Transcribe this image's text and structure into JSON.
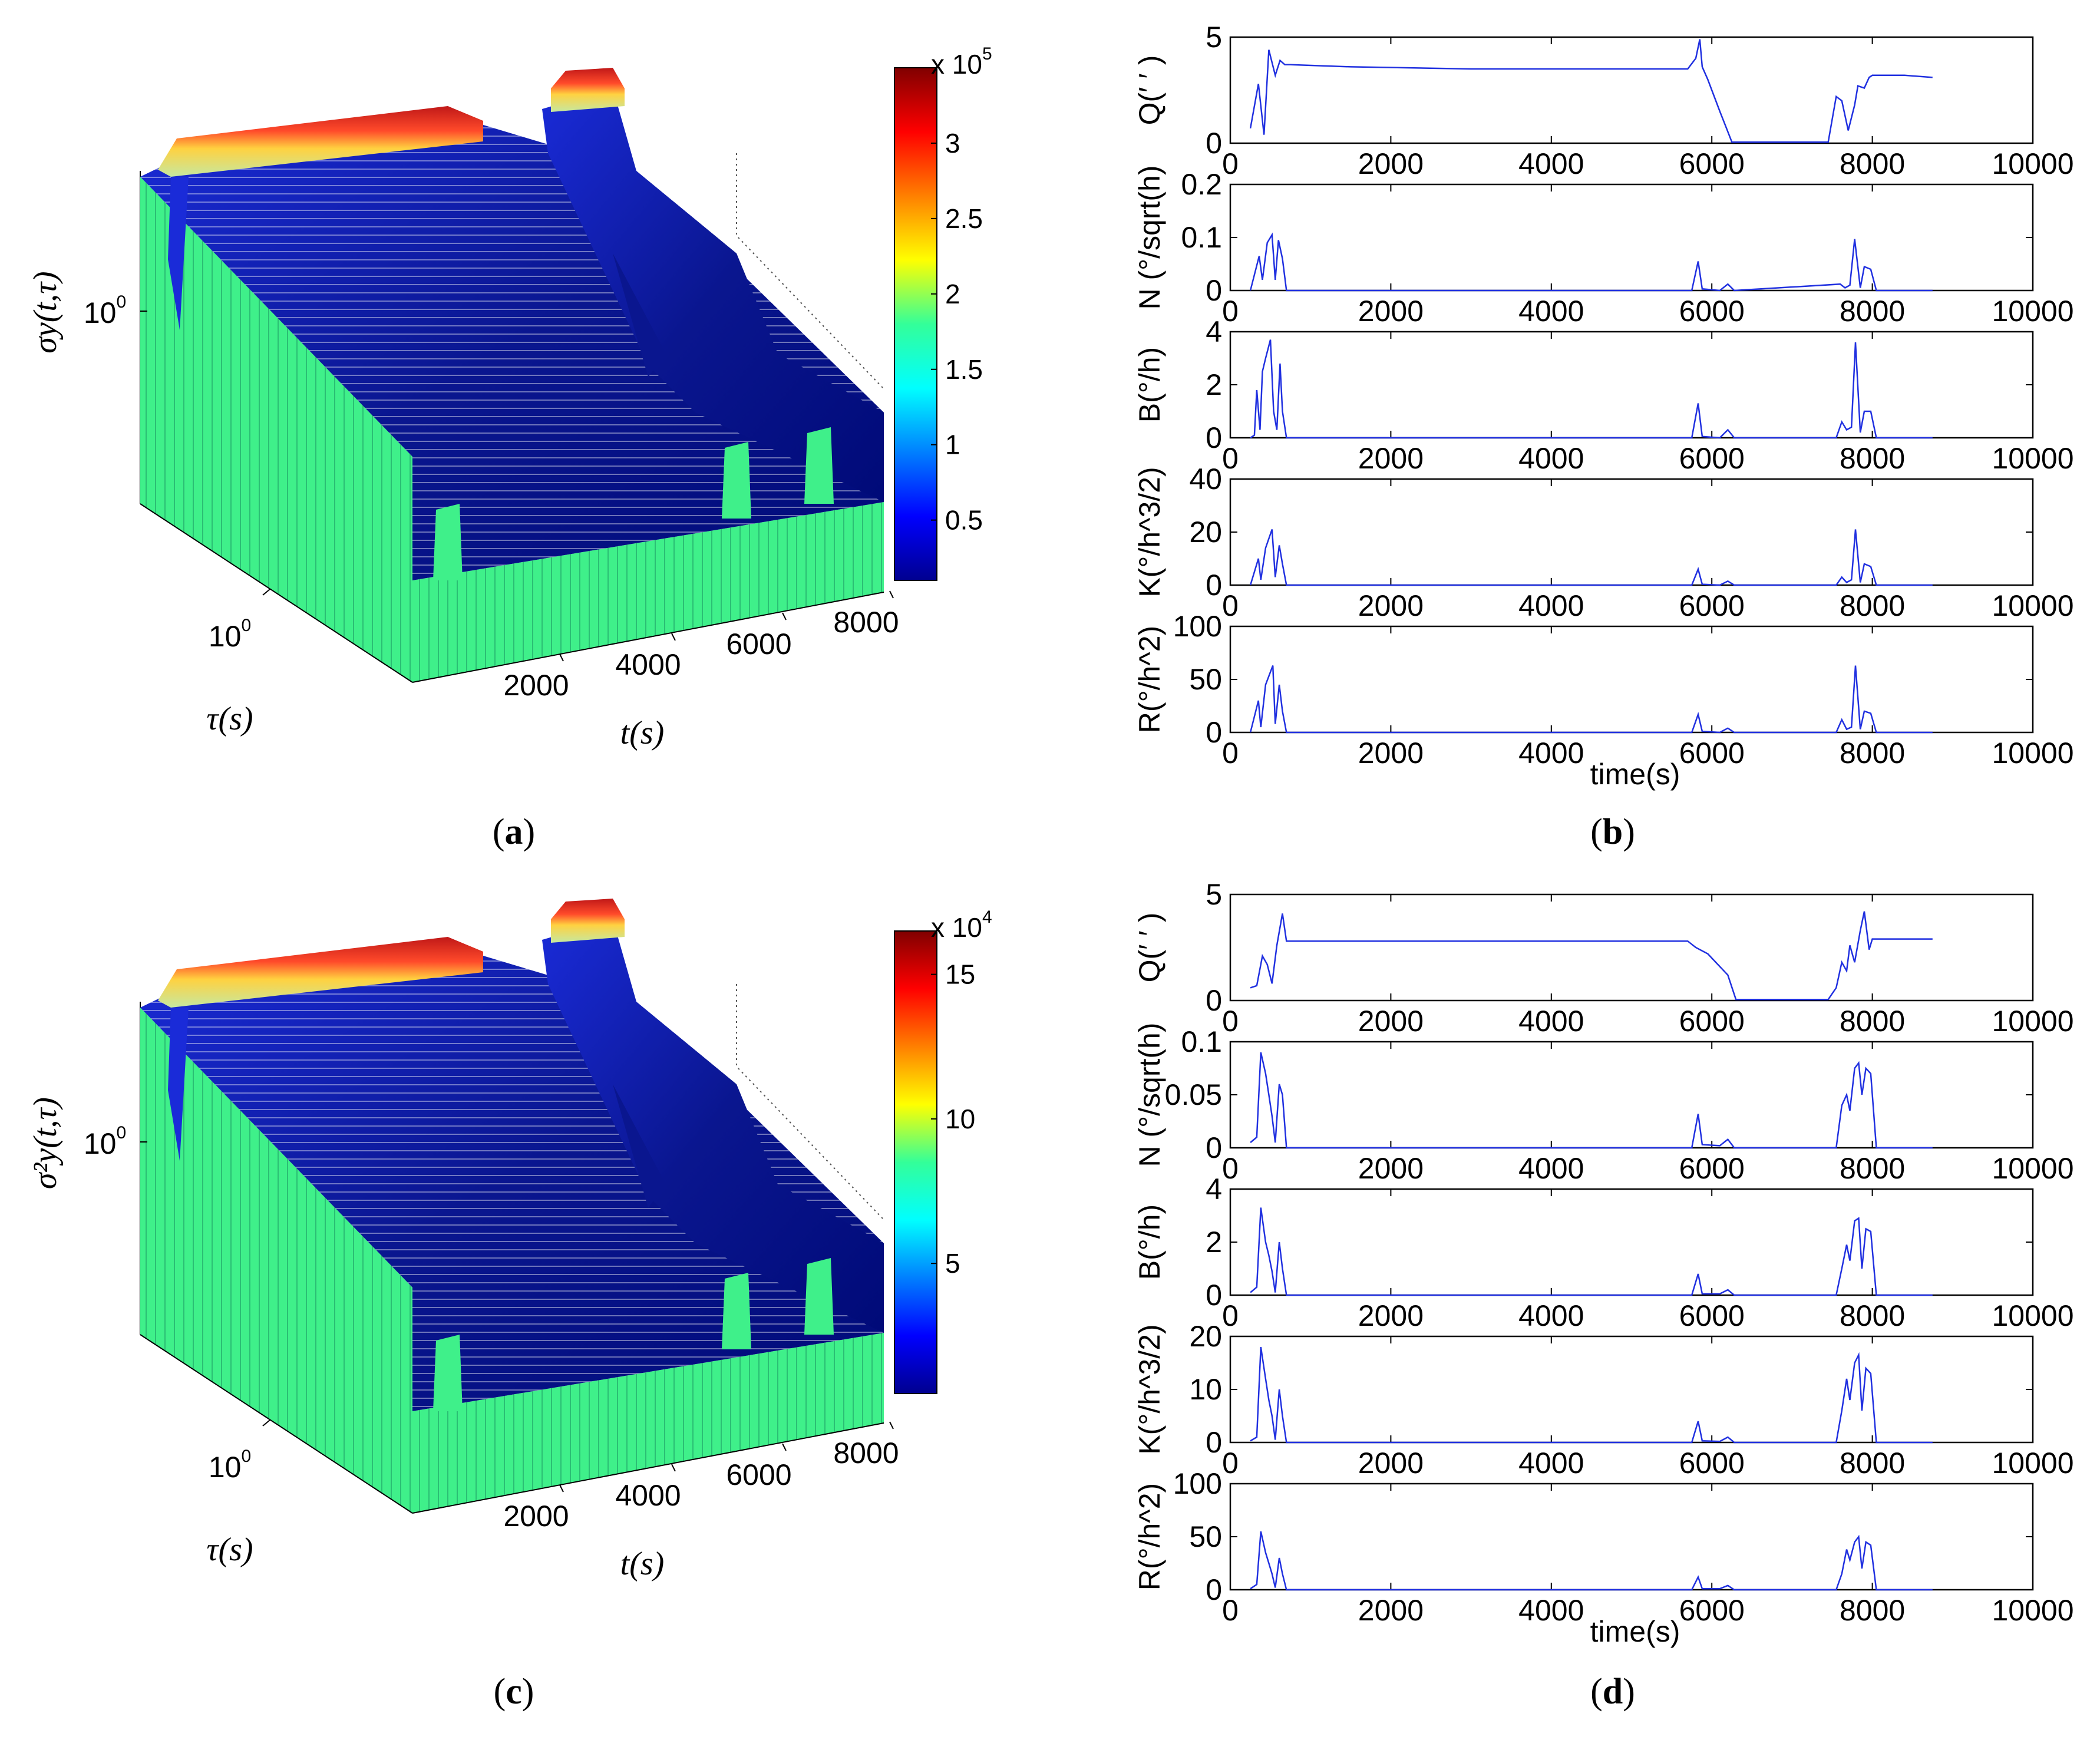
{
  "colors": {
    "series_line": "#2030e0",
    "surface_dark": "#000a8c",
    "surface_green": "#3ff08a",
    "axis": "#000000"
  },
  "captions": {
    "a": "a",
    "b": "b",
    "c": "c",
    "d": "d"
  },
  "chart_data": [
    {
      "panel": "a",
      "type": "surface3d",
      "zlabel": "σy(t,τ)",
      "ylabel": "τ(s)",
      "xlabel": "t(s)",
      "x_ticks": [
        "2000",
        "4000",
        "6000",
        "8000"
      ],
      "y_ticks": [
        "10"
      ],
      "y_tick_exponents": [
        "0"
      ],
      "z_ticks": [
        "10"
      ],
      "z_tick_exponents": [
        "0"
      ],
      "colorbar": {
        "ticks": [
          "0.5",
          "1",
          "1.5",
          "2",
          "2.5",
          "3"
        ],
        "tick_values": [
          0.5,
          1,
          1.5,
          2,
          2.5,
          3
        ],
        "range": [
          0.1,
          3.5
        ],
        "multiplier": "x 10",
        "multiplier_exponent": "5"
      }
    },
    {
      "panel": "b",
      "type": "line",
      "subplots": [
        {
          "ylabel": "Q(′  ′ )",
          "ylim": [
            0,
            5
          ],
          "yticks": [
            "0",
            "5"
          ],
          "x": [
            250,
            350,
            420,
            480,
            560,
            620,
            680,
            750,
            1500,
            3000,
            4500,
            5700,
            5800,
            5850,
            5880,
            5950,
            6100,
            6250,
            6400,
            7450,
            7550,
            7620,
            7700,
            7780,
            7820,
            7900,
            7960,
            8000,
            8400,
            8750
          ],
          "y": [
            0.7,
            2.8,
            0.4,
            4.4,
            3.2,
            3.9,
            3.7,
            3.7,
            3.6,
            3.5,
            3.5,
            3.5,
            4.0,
            4.9,
            3.6,
            3.0,
            1.5,
            0.05,
            0.05,
            0.05,
            2.2,
            2.0,
            0.6,
            1.8,
            2.7,
            2.6,
            3.1,
            3.2,
            3.2,
            3.1
          ]
        },
        {
          "ylabel": "N (°/sqrt(h)",
          "ylim": [
            0,
            0.2
          ],
          "yticks": [
            "0",
            "0.1",
            "0.2"
          ],
          "x": [
            250,
            360,
            400,
            460,
            520,
            560,
            600,
            650,
            700,
            5750,
            5830,
            5880,
            6100,
            6200,
            6280,
            7600,
            7660,
            7720,
            7780,
            7850,
            7900,
            7980,
            8050,
            8750
          ],
          "y": [
            0,
            0.065,
            0.02,
            0.09,
            0.105,
            0.02,
            0.095,
            0.06,
            0,
            0,
            0.055,
            0.003,
            0,
            0.012,
            0,
            0.012,
            0.005,
            0.01,
            0.097,
            0.005,
            0.045,
            0.04,
            0,
            0
          ]
        },
        {
          "ylabel": "B(°/h)",
          "ylim": [
            0,
            4
          ],
          "yticks": [
            "0",
            "2",
            "4"
          ],
          "x": [
            250,
            300,
            330,
            370,
            400,
            440,
            500,
            540,
            580,
            620,
            650,
            700,
            5750,
            5830,
            5880,
            6100,
            6200,
            6280,
            7550,
            7620,
            7680,
            7740,
            7790,
            7850,
            7900,
            7980,
            8050,
            8750
          ],
          "y": [
            0,
            0.1,
            1.8,
            0.3,
            2.5,
            3.0,
            3.7,
            1.0,
            0.3,
            2.8,
            1.0,
            0,
            0,
            1.3,
            0.05,
            0,
            0.3,
            0,
            0,
            0.6,
            0.3,
            0.4,
            3.6,
            0.2,
            1.0,
            1.0,
            0,
            0
          ]
        },
        {
          "ylabel": "K(°/h^3/2)",
          "ylim": [
            0,
            40
          ],
          "yticks": [
            "0",
            "20",
            "40"
          ],
          "x": [
            250,
            350,
            380,
            440,
            520,
            560,
            610,
            650,
            700,
            5750,
            5830,
            5880,
            6100,
            6200,
            6280,
            7550,
            7620,
            7680,
            7740,
            7790,
            7850,
            7900,
            7980,
            8050,
            8750
          ],
          "y": [
            0,
            10,
            2,
            14,
            21,
            3,
            15,
            8,
            0,
            0,
            6,
            0.3,
            0,
            1.5,
            0,
            0,
            3,
            1,
            2,
            21,
            1,
            8,
            7,
            0,
            0
          ]
        },
        {
          "ylabel": "R(°/h^2)",
          "ylim": [
            0,
            100
          ],
          "yticks": [
            "0",
            "50",
            "100"
          ],
          "x": [
            250,
            350,
            380,
            440,
            530,
            560,
            610,
            650,
            700,
            5750,
            5830,
            5880,
            6100,
            6200,
            6280,
            7550,
            7620,
            7680,
            7740,
            7790,
            7850,
            7900,
            7980,
            8050,
            8750
          ],
          "y": [
            0,
            30,
            5,
            45,
            63,
            8,
            45,
            20,
            0,
            0,
            17,
            1,
            0,
            4,
            0,
            0,
            12,
            3,
            5,
            63,
            3,
            20,
            18,
            0,
            0
          ]
        }
      ],
      "xlim": [
        0,
        10000
      ],
      "xticks": [
        "0",
        "2000",
        "4000",
        "6000",
        "8000",
        "10000"
      ],
      "xlabel": "time(s)"
    },
    {
      "panel": "c",
      "type": "surface3d",
      "zlabel": "σ²y(t,τ)",
      "ylabel": "τ(s)",
      "xlabel": "t(s)",
      "x_ticks": [
        "2000",
        "4000",
        "6000",
        "8000"
      ],
      "y_ticks": [
        "10"
      ],
      "y_tick_exponents": [
        "0"
      ],
      "z_ticks": [
        "10"
      ],
      "z_tick_exponents": [
        "0"
      ],
      "colorbar": {
        "ticks": [
          "5",
          "10",
          "15"
        ],
        "tick_values": [
          5,
          10,
          15
        ],
        "range": [
          0.5,
          16.5
        ],
        "multiplier": "x 10",
        "multiplier_exponent": "4"
      }
    },
    {
      "panel": "d",
      "type": "line",
      "subplots": [
        {
          "ylabel": "Q(′  ′ )",
          "ylim": [
            0,
            5
          ],
          "yticks": [
            "0",
            "5"
          ],
          "x": [
            250,
            330,
            400,
            460,
            520,
            580,
            650,
            700,
            750,
            1500,
            3000,
            4500,
            5700,
            5800,
            5950,
            6100,
            6200,
            6300,
            6400,
            7450,
            7550,
            7620,
            7680,
            7720,
            7780,
            7850,
            7900,
            7960,
            8000,
            8400,
            8750
          ],
          "y": [
            0.6,
            0.7,
            2.1,
            1.7,
            0.8,
            2.6,
            4.1,
            2.8,
            2.8,
            2.8,
            2.8,
            2.8,
            2.8,
            2.5,
            2.2,
            1.6,
            1.2,
            0.05,
            0.05,
            0.05,
            0.6,
            1.8,
            1.4,
            2.6,
            1.8,
            3.3,
            4.2,
            2.4,
            2.9,
            2.9,
            2.9
          ]
        },
        {
          "ylabel": "N (°/sqrt(h)",
          "ylim": [
            0,
            0.1
          ],
          "yticks": [
            "0",
            "0.05",
            "0.1"
          ],
          "x": [
            250,
            330,
            380,
            440,
            480,
            520,
            560,
            610,
            650,
            700,
            5750,
            5830,
            5880,
            6100,
            6200,
            6280,
            7550,
            7620,
            7680,
            7720,
            7780,
            7830,
            7870,
            7920,
            7980,
            8050,
            8750
          ],
          "y": [
            0.005,
            0.01,
            0.09,
            0.07,
            0.05,
            0.03,
            0.005,
            0.06,
            0.05,
            0,
            0,
            0.032,
            0.003,
            0.002,
            0.008,
            0,
            0,
            0.04,
            0.05,
            0.035,
            0.075,
            0.08,
            0.05,
            0.075,
            0.07,
            0,
            0
          ]
        },
        {
          "ylabel": "B(°/h)",
          "ylim": [
            0,
            4
          ],
          "yticks": [
            "0",
            "2",
            "4"
          ],
          "x": [
            250,
            330,
            380,
            440,
            480,
            520,
            560,
            610,
            650,
            700,
            5750,
            5830,
            5880,
            6100,
            6200,
            6280,
            7550,
            7620,
            7680,
            7720,
            7780,
            7830,
            7870,
            7920,
            7980,
            8050,
            8750
          ],
          "y": [
            0.1,
            0.3,
            3.3,
            2.0,
            1.5,
            0.9,
            0.1,
            2.0,
            1.0,
            0,
            0,
            0.8,
            0.05,
            0.05,
            0.2,
            0,
            0,
            1.0,
            1.9,
            1.3,
            2.8,
            2.9,
            1.0,
            2.5,
            2.4,
            0,
            0
          ]
        },
        {
          "ylabel": "K(°/h^3/2)",
          "ylim": [
            0,
            20
          ],
          "yticks": [
            "0",
            "10",
            "20"
          ],
          "x": [
            250,
            330,
            380,
            440,
            480,
            520,
            560,
            610,
            650,
            700,
            5750,
            5830,
            5880,
            6100,
            6200,
            6280,
            7550,
            7620,
            7680,
            7720,
            7780,
            7830,
            7870,
            7920,
            7980,
            8050,
            8750
          ],
          "y": [
            0.3,
            1,
            18,
            12,
            8,
            5,
            0.5,
            10,
            5,
            0,
            0,
            4,
            0.3,
            0.2,
            1,
            0,
            0,
            6,
            12,
            8,
            15,
            16.5,
            6,
            14,
            13,
            0,
            0
          ]
        },
        {
          "ylabel": "R(°/h^2)",
          "ylim": [
            0,
            100
          ],
          "yticks": [
            "0",
            "50",
            "100"
          ],
          "x": [
            250,
            330,
            380,
            440,
            480,
            520,
            560,
            610,
            650,
            700,
            5750,
            5830,
            5880,
            6100,
            6200,
            6280,
            7550,
            7620,
            7680,
            7720,
            7780,
            7830,
            7870,
            7920,
            7980,
            8050,
            8750
          ],
          "y": [
            1,
            5,
            55,
            35,
            25,
            15,
            2,
            30,
            15,
            0,
            0,
            12,
            1,
            1,
            4,
            0,
            0,
            15,
            38,
            28,
            45,
            50,
            20,
            45,
            42,
            0,
            0
          ]
        }
      ],
      "xlim": [
        0,
        10000
      ],
      "xticks": [
        "0",
        "2000",
        "4000",
        "6000",
        "8000",
        "10000"
      ],
      "xlabel": "time(s)"
    }
  ]
}
